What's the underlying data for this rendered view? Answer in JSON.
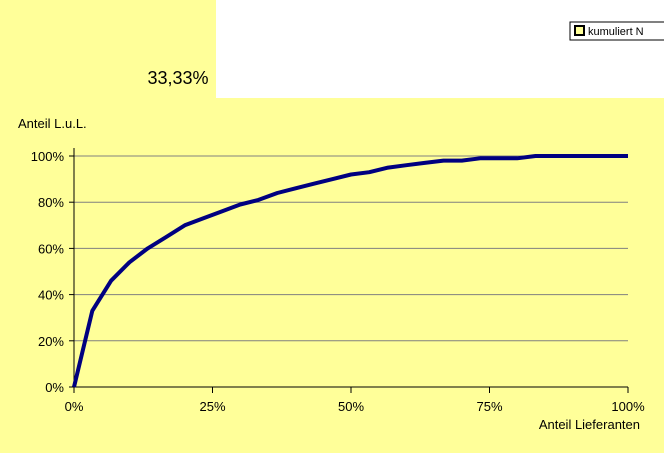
{
  "top_value": "33,33%",
  "legend": {
    "label": "kumuliert N"
  },
  "colors": {
    "panel_fill": "#ffff99",
    "line": "#000080",
    "gridline": "#808080",
    "axis": "#000000"
  },
  "chart_data": {
    "type": "line",
    "title": "",
    "xlabel": "Anteil Lieferanten",
    "ylabel": "Anteil L.u.L.",
    "xlim": [
      0,
      100
    ],
    "ylim": [
      0,
      100
    ],
    "x_tick_labels": [
      "0%",
      "25%",
      "50%",
      "75%",
      "100%"
    ],
    "y_tick_labels": [
      "0%",
      "20%",
      "40%",
      "60%",
      "80%",
      "100%"
    ],
    "grid": "horizontal",
    "legend_position": "top-right",
    "series": [
      {
        "name": "kumuliert N",
        "x": [
          0,
          3.3,
          6.7,
          10,
          13.3,
          16.7,
          20,
          23.3,
          26.7,
          30,
          33.3,
          36.7,
          40,
          43.3,
          46.7,
          50,
          53.3,
          56.7,
          60,
          63.3,
          66.7,
          70,
          73.3,
          76.7,
          80,
          83.3,
          86.7,
          90,
          93.3,
          96.7,
          100
        ],
        "y": [
          0,
          33,
          46,
          54,
          60,
          65,
          70,
          73,
          76,
          79,
          81,
          84,
          86,
          88,
          90,
          92,
          93,
          95,
          96,
          97,
          98,
          98,
          99,
          99,
          99,
          100,
          100,
          100,
          100,
          100,
          100
        ]
      }
    ]
  }
}
